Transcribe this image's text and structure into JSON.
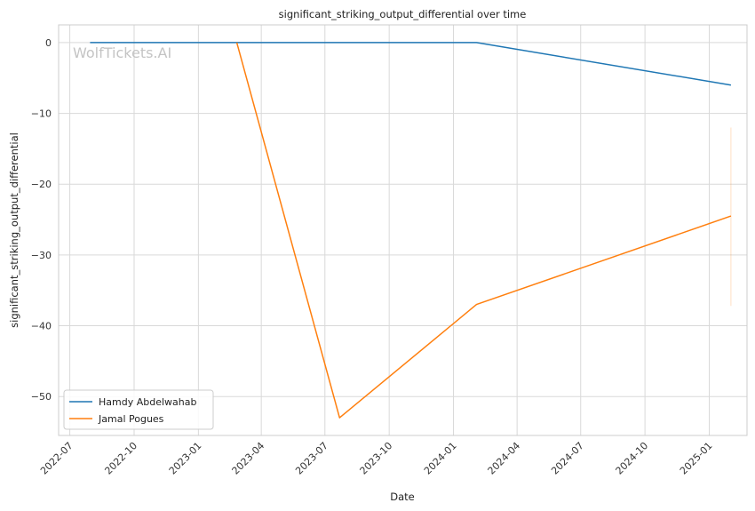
{
  "chart_data": {
    "type": "line",
    "title": "significant_striking_output_differential over time",
    "xlabel": "Date",
    "ylabel": "significant_striking_output_differential",
    "watermark": "WolfTickets.AI",
    "x_axis_type": "date",
    "xlim": [
      "2022-06-15",
      "2025-02-24"
    ],
    "ylim": [
      -55.5,
      2.5
    ],
    "x_ticks": [
      "2022-07",
      "2022-10",
      "2023-01",
      "2023-04",
      "2023-07",
      "2023-10",
      "2024-01",
      "2024-04",
      "2024-07",
      "2024-10",
      "2025-01"
    ],
    "y_ticks": [
      0,
      -10,
      -20,
      -30,
      -40,
      -50
    ],
    "y_tick_labels": [
      "0",
      "−10",
      "−20",
      "−30",
      "−40",
      "−50"
    ],
    "grid": true,
    "legend_position": "lower-left",
    "series": [
      {
        "name": "Hamdy Abdelwahab",
        "color": "#1f77b4",
        "x": [
          "2022-07-30",
          "2024-02-03",
          "2025-02-01"
        ],
        "y": [
          0,
          0,
          -6
        ]
      },
      {
        "name": "Jamal Pogues",
        "color": "#ff7f0e",
        "x": [
          "2023-02-25",
          "2023-07-22",
          "2024-02-03",
          "2025-02-01"
        ],
        "y": [
          0,
          -53,
          -37,
          -24.5
        ]
      }
    ],
    "faint_band": {
      "color": "#ff7f0e",
      "x": "2025-02-01",
      "y_range": [
        -37.2,
        -12
      ]
    }
  }
}
